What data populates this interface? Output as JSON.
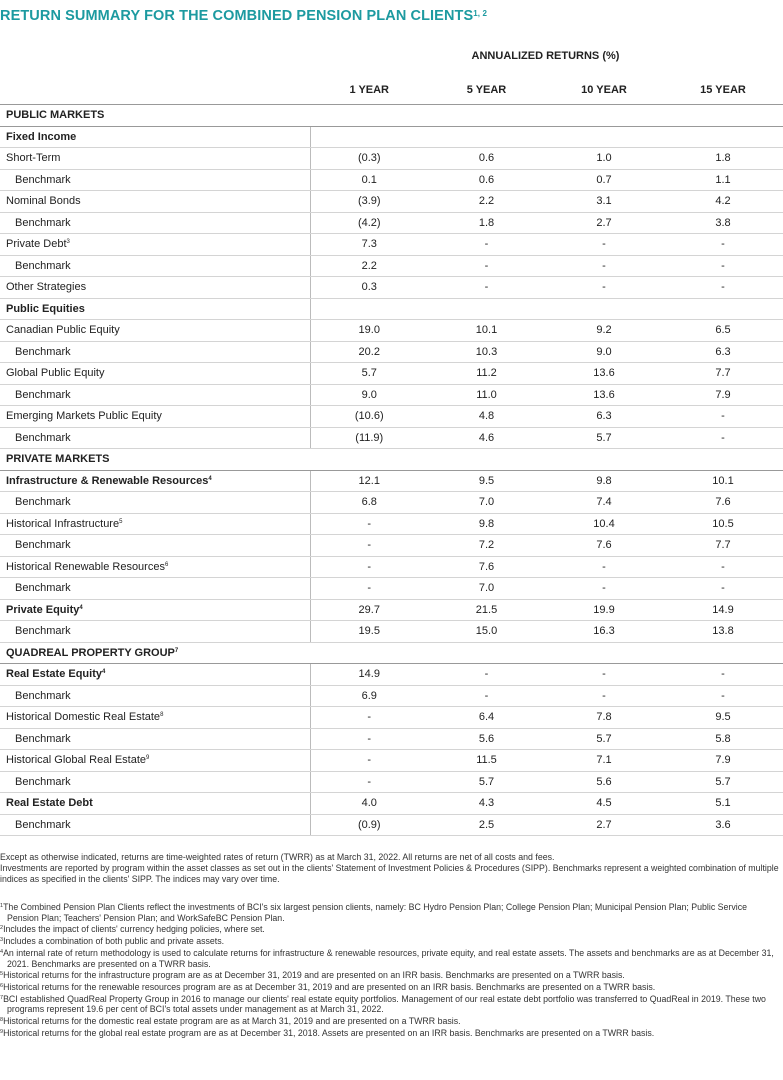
{
  "header": {
    "title": "RETURN SUMMARY FOR THE COMBINED PENSION PLAN CLIENTS",
    "title_sup": "1, 2",
    "group_label": "ANNUALIZED RETURNS (%)",
    "columns": [
      "1 YEAR",
      "5 YEAR",
      "10 YEAR",
      "15 YEAR"
    ]
  },
  "table": {
    "rows": [
      {
        "kind": "section",
        "label": "PUBLIC MARKETS"
      },
      {
        "kind": "group",
        "label": "Fixed Income"
      },
      {
        "kind": "item",
        "label": "Short-Term",
        "values": [
          "(0.3)",
          "0.6",
          "1.0",
          "1.8"
        ]
      },
      {
        "kind": "benchmark",
        "label": "Benchmark",
        "values": [
          "0.1",
          "0.6",
          "0.7",
          "1.1"
        ]
      },
      {
        "kind": "item",
        "label": "Nominal Bonds",
        "values": [
          "(3.9)",
          "2.2",
          "3.1",
          "4.2"
        ]
      },
      {
        "kind": "benchmark",
        "label": "Benchmark",
        "values": [
          "(4.2)",
          "1.8",
          "2.7",
          "3.8"
        ]
      },
      {
        "kind": "item",
        "label": "Private Debt",
        "sup": "3",
        "values": [
          "7.3",
          "-",
          "-",
          "-"
        ]
      },
      {
        "kind": "benchmark",
        "label": "Benchmark",
        "values": [
          "2.2",
          "-",
          "-",
          "-"
        ]
      },
      {
        "kind": "item",
        "label": "Other Strategies",
        "values": [
          "0.3",
          "-",
          "-",
          "-"
        ]
      },
      {
        "kind": "group",
        "label": "Public Equities"
      },
      {
        "kind": "item",
        "label": "Canadian Public Equity",
        "values": [
          "19.0",
          "10.1",
          "9.2",
          "6.5"
        ]
      },
      {
        "kind": "benchmark",
        "label": "Benchmark",
        "values": [
          "20.2",
          "10.3",
          "9.0",
          "6.3"
        ]
      },
      {
        "kind": "item",
        "label": "Global Public Equity",
        "values": [
          "5.7",
          "11.2",
          "13.6",
          "7.7"
        ]
      },
      {
        "kind": "benchmark",
        "label": "Benchmark",
        "values": [
          "9.0",
          "11.0",
          "13.6",
          "7.9"
        ]
      },
      {
        "kind": "item",
        "label": "Emerging Markets Public Equity",
        "values": [
          "(10.6)",
          "4.8",
          "6.3",
          "-"
        ]
      },
      {
        "kind": "benchmark",
        "label": "Benchmark",
        "values": [
          "(11.9)",
          "4.6",
          "5.7",
          "-"
        ]
      },
      {
        "kind": "section",
        "label": "PRIVATE MARKETS"
      },
      {
        "kind": "bold",
        "label": "Infrastructure & Renewable Resources",
        "sup": "4",
        "values": [
          "12.1",
          "9.5",
          "9.8",
          "10.1"
        ]
      },
      {
        "kind": "benchmark",
        "label": "Benchmark",
        "values": [
          "6.8",
          "7.0",
          "7.4",
          "7.6"
        ]
      },
      {
        "kind": "item",
        "label": "Historical Infrastructure",
        "sup": "5",
        "values": [
          "-",
          "9.8",
          "10.4",
          "10.5"
        ]
      },
      {
        "kind": "benchmark",
        "label": "Benchmark",
        "values": [
          "-",
          "7.2",
          "7.6",
          "7.7"
        ]
      },
      {
        "kind": "item",
        "label": "Historical Renewable Resources",
        "sup": "6",
        "values": [
          "-",
          "7.6",
          "-",
          "-"
        ]
      },
      {
        "kind": "benchmark",
        "label": "Benchmark",
        "values": [
          "-",
          "7.0",
          "-",
          "-"
        ]
      },
      {
        "kind": "bold",
        "label": "Private Equity",
        "sup": "4",
        "values": [
          "29.7",
          "21.5",
          "19.9",
          "14.9"
        ]
      },
      {
        "kind": "benchmark",
        "label": "Benchmark",
        "values": [
          "19.5",
          "15.0",
          "16.3",
          "13.8"
        ]
      },
      {
        "kind": "section",
        "label": "QUADREAL PROPERTY GROUP",
        "sup": "7"
      },
      {
        "kind": "bold",
        "label": "Real Estate Equity",
        "sup": "4",
        "values": [
          "14.9",
          "-",
          "-",
          "-"
        ]
      },
      {
        "kind": "benchmark",
        "label": "Benchmark",
        "values": [
          "6.9",
          "-",
          "-",
          "-"
        ]
      },
      {
        "kind": "item",
        "label": "Historical Domestic Real Estate",
        "sup": "8",
        "values": [
          "-",
          "6.4",
          "7.8",
          "9.5"
        ]
      },
      {
        "kind": "benchmark",
        "label": "Benchmark",
        "values": [
          "-",
          "5.6",
          "5.7",
          "5.8"
        ]
      },
      {
        "kind": "item",
        "label": "Historical Global Real Estate",
        "sup": "9",
        "values": [
          "-",
          "11.5",
          "7.1",
          "7.9"
        ]
      },
      {
        "kind": "benchmark",
        "label": "Benchmark",
        "values": [
          "-",
          "5.7",
          "5.6",
          "5.7"
        ]
      },
      {
        "kind": "bold",
        "label": "Real Estate Debt",
        "values": [
          "4.0",
          "4.3",
          "4.5",
          "5.1"
        ]
      },
      {
        "kind": "benchmark",
        "label": "Benchmark",
        "values": [
          "(0.9)",
          "2.5",
          "2.7",
          "3.6"
        ]
      }
    ]
  },
  "notes": [
    "Except as otherwise indicated, returns are time-weighted rates of return (TWRR) as at March 31, 2022. All returns are net of all costs and fees.",
    "Investments are reported by program within the asset classes as set out in the clients' Statement of Investment Policies & Procedures (SIPP). Benchmarks represent a weighted combination of multiple indices as specified in the clients' SIPP. The indices may vary over time."
  ],
  "footnotes": [
    {
      "mark": "1",
      "text": "The Combined Pension Plan Clients reflect the investments of BCI's six largest pension clients, namely: BC Hydro Pension Plan; College Pension Plan; Municipal Pension Plan; Public Service Pension Plan; Teachers' Pension Plan; and WorkSafeBC Pension Plan."
    },
    {
      "mark": "2",
      "text": "Includes the impact of clients' currency hedging policies, where set."
    },
    {
      "mark": "3",
      "text": "Includes a combination of both public and private assets."
    },
    {
      "mark": "4",
      "text": "An internal rate of return methodology is used to calculate returns for infrastructure & renewable resources, private equity, and real estate assets. The assets and benchmarks are as at December 31, 2021. Benchmarks are presented on a TWRR basis."
    },
    {
      "mark": "5",
      "text": "Historical returns for the infrastructure program are as at December 31, 2019 and are presented on an IRR basis. Benchmarks are presented on a TWRR basis."
    },
    {
      "mark": "6",
      "text": "Historical returns for the renewable resources program are as at December 31, 2019 and are presented on an IRR basis. Benchmarks are presented on a TWRR basis."
    },
    {
      "mark": "7",
      "text": "BCI established QuadReal Property Group in 2016 to manage our clients' real estate equity portfolios. Management of our real estate debt portfolio was transferred to QuadReal in 2019. These two programs represent 19.6 per cent of BCI's total assets under management as at March 31, 2022."
    },
    {
      "mark": "8",
      "text": "Historical returns for the domestic real estate program are as at March 31, 2019 and are presented on a TWRR basis."
    },
    {
      "mark": "9",
      "text": "Historical returns for the global real estate program are as at December 31, 2018. Assets are presented on an IRR basis. Benchmarks are presented on a TWRR basis."
    }
  ]
}
